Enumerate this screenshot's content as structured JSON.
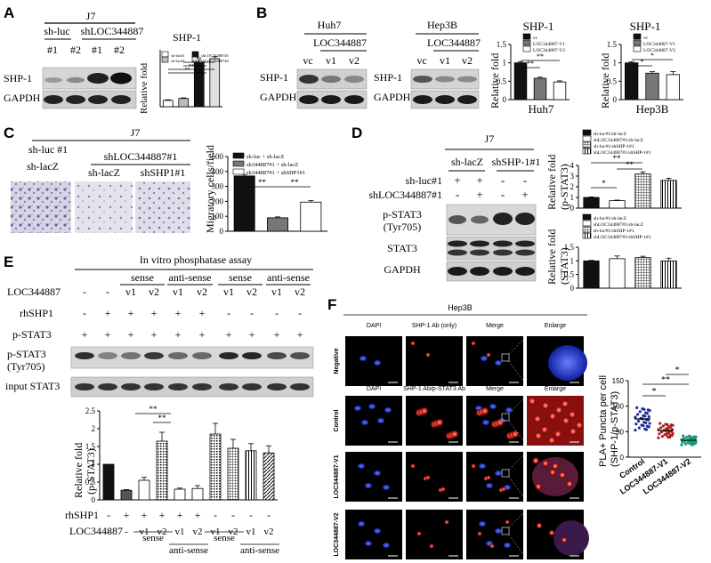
{
  "panels": {
    "A": {
      "letter": "A",
      "cell_line": "J7",
      "group_labels": [
        "sh-luc",
        "shLOC344887"
      ],
      "lane_labels": [
        "#1",
        "#2",
        "#1",
        "#2"
      ],
      "blot_labels": [
        "SHP-1",
        "GAPDH"
      ],
      "chart_title": "SHP-1",
      "ylabel": "Relative fold",
      "legend": [
        "sh-luc#1",
        "sh-luc#2",
        "shLOC344887#1",
        "shLOC344887#2"
      ],
      "sig": [
        "**",
        "**",
        "**",
        "**"
      ]
    },
    "B": {
      "letter": "B",
      "huh7_title": "Huh7",
      "hep3b_title": "Hep3B",
      "lnc_label": "LOC344887",
      "lane_labels": [
        "vc",
        "v1",
        "v2"
      ],
      "blot_labels": [
        "SHP-1",
        "GAPDH"
      ],
      "chart_titles": [
        "SHP-1",
        "SHP-1"
      ],
      "chart_xlabels": [
        "Huh7",
        "Hep3B"
      ],
      "ylabel": "Relative fold",
      "legend": [
        "vc",
        "LOC344887-V1",
        "LOC344887-V2"
      ],
      "sig": [
        "**",
        "**",
        "*",
        "*"
      ]
    },
    "C": {
      "letter": "C",
      "cell_line": "J7",
      "img_labels": [
        "sh-luc #1",
        "sh-lacZ",
        "shLOC344887#1",
        "sh-lacZ",
        "shSHP1#1"
      ],
      "ylabel": "Migratory cells/field",
      "legend": [
        "sh-luc + sh-lacZ",
        "sh344887#1 + sh-lacZ",
        "sh344887#1 + shSHP1#1"
      ],
      "sig": [
        "**",
        "**"
      ]
    },
    "D": {
      "letter": "D",
      "cell_line": "J7",
      "col_labels": [
        "sh-lacZ",
        "shSHP-1#1"
      ],
      "row_labels": [
        "sh-luc#1",
        "shLOC344887#1"
      ],
      "signs": [
        [
          "+",
          "+",
          "-",
          "-"
        ],
        [
          "-",
          "+",
          "-",
          "+"
        ]
      ],
      "blot_labels": [
        "p-STAT3",
        "(Tyr705)",
        "STAT3",
        "GAPDH"
      ],
      "ylabel1": "Relative fold",
      "ylabel1b": "(p-STAT3)",
      "ylabel2": "Relative fold",
      "ylabel2b": "(STAT3)",
      "legend": [
        "sh-luc#1/sh-lacZ",
        "shLOC344887#1/sh-lacZ",
        "sh-luc#1/shSHP-1#1",
        "shLOC344887#1/shSHP-1#1"
      ],
      "sig": [
        "*",
        "**",
        "**"
      ]
    },
    "E": {
      "letter": "E",
      "title": "In vitro phosphatase assay",
      "group_headers": [
        "sense",
        "anti-sense",
        "sense",
        "anti-sense"
      ],
      "row_labels": [
        "LOC344887",
        "rhSHP1",
        "p-STAT3"
      ],
      "loc_row": [
        "-",
        "-",
        "v1",
        "v2",
        "v1",
        "v2",
        "v1",
        "v2",
        "v1",
        "v2"
      ],
      "shp_row": [
        "-",
        "+",
        "+",
        "+",
        "+",
        "+",
        "-",
        "-",
        "-",
        "-"
      ],
      "pstat_row": [
        "+",
        "+",
        "+",
        "+",
        "+",
        "+",
        "+",
        "+",
        "+",
        "+"
      ],
      "blot_labels": [
        "p-STAT3",
        "(Tyr705)",
        "input STAT3"
      ],
      "ylabel": "Relative fold",
      "ylabel_b": "(p-STAT3)",
      "bottom_rows": [
        "rhSHP1",
        "LOC344887"
      ],
      "bottom_sub": [
        "sense",
        "anti-sense",
        "sense",
        "anti-sense"
      ],
      "sig": [
        "**",
        "**"
      ]
    },
    "F": {
      "letter": "F",
      "cell_line": "Hep3B",
      "col_titles_top": [
        "DAPI",
        "SHP-1 Ab (only)",
        "Merge",
        "Enlarge"
      ],
      "col_titles": [
        "DAPI",
        "SHP-1 Ab/p-STAT3 Ab",
        "Merge",
        "Enlarge"
      ],
      "row_labels": [
        "Negative",
        "Control",
        "LOC344887-V1",
        "LOC344887-V2"
      ],
      "ylabel": "PLA+ Puncta per cell",
      "ylabel_b": "(SHP-1/p-STAT3)",
      "xlabels": [
        "Control",
        "LOC344887-V1",
        "LOC344887-V2"
      ],
      "sig": [
        "*",
        "**",
        "*"
      ]
    }
  },
  "chart_data": [
    {
      "type": "bar",
      "panel": "A",
      "title": "SHP-1",
      "ylabel": "Relative fold",
      "categories": [
        "sh-luc#1",
        "sh-luc#2",
        "shLOC344887#1",
        "shLOC344887#2"
      ],
      "values": [
        1.0,
        1.3,
        7.0,
        7.6
      ],
      "ylim": [
        0,
        9
      ]
    },
    {
      "type": "bar",
      "panel": "B-Huh7",
      "title": "SHP-1",
      "ylabel": "Relative fold",
      "xlabel": "Huh7",
      "categories": [
        "vc",
        "LOC344887-V1",
        "LOC344887-V2"
      ],
      "values": [
        1.0,
        0.58,
        0.48
      ],
      "ylim": [
        0,
        1.5
      ]
    },
    {
      "type": "bar",
      "panel": "B-Hep3B",
      "title": "SHP-1",
      "ylabel": "Relative fold",
      "xlabel": "Hep3B",
      "categories": [
        "vc",
        "LOC344887-V1",
        "LOC344887-V2"
      ],
      "values": [
        1.0,
        0.72,
        0.68
      ],
      "ylim": [
        0,
        1.5
      ]
    },
    {
      "type": "bar",
      "panel": "C",
      "ylabel": "Migratory cells/field",
      "categories": [
        "sh-luc + sh-lacZ",
        "sh344887#1 + sh-lacZ",
        "sh344887#1 + shSHP1#1"
      ],
      "values": [
        370,
        90,
        195
      ],
      "ylim": [
        0,
        500
      ]
    },
    {
      "type": "bar",
      "panel": "D-pSTAT3",
      "ylabel": "Relative fold (p-STAT3)",
      "categories": [
        "sh-luc#1/sh-lacZ",
        "shLOC344887#1/sh-lacZ",
        "sh-luc#1/shSHP-1#1",
        "shLOC344887#1/shSHP-1#1"
      ],
      "values": [
        1.0,
        0.7,
        3.2,
        2.6
      ],
      "ylim": [
        0,
        4
      ]
    },
    {
      "type": "bar",
      "panel": "D-STAT3",
      "ylabel": "Relative fold (STAT3)",
      "categories": [
        "sh-luc#1/sh-lacZ",
        "shLOC344887#1/sh-lacZ",
        "sh-luc#1/shSHP-1#1",
        "shLOC344887#1/shSHP-1#1"
      ],
      "values": [
        1.0,
        1.08,
        1.12,
        1.0
      ],
      "ylim": [
        0,
        1.5
      ]
    },
    {
      "type": "bar",
      "panel": "E",
      "ylabel": "Relative fold (p-STAT3)",
      "categories": [
        "-/-",
        "+/-",
        "+/sense v1",
        "+/sense v2",
        "+/anti-sense v1",
        "+/anti-sense v2",
        "-/sense v1",
        "-/sense v2",
        "-/anti-sense v1",
        "-/anti-sense v2"
      ],
      "values": [
        1.0,
        0.27,
        0.55,
        1.65,
        0.3,
        0.32,
        1.85,
        1.45,
        1.38,
        1.32
      ],
      "ylim": [
        0,
        2.5
      ]
    },
    {
      "type": "scatter",
      "panel": "F",
      "ylabel": "PLA+ Puncta per cell (SHP-1/p-STAT3)",
      "categories": [
        "Control",
        "LOC344887-V1",
        "LOC344887-V2"
      ],
      "means": [
        75,
        52,
        33
      ],
      "ylim": [
        0,
        150
      ]
    }
  ]
}
